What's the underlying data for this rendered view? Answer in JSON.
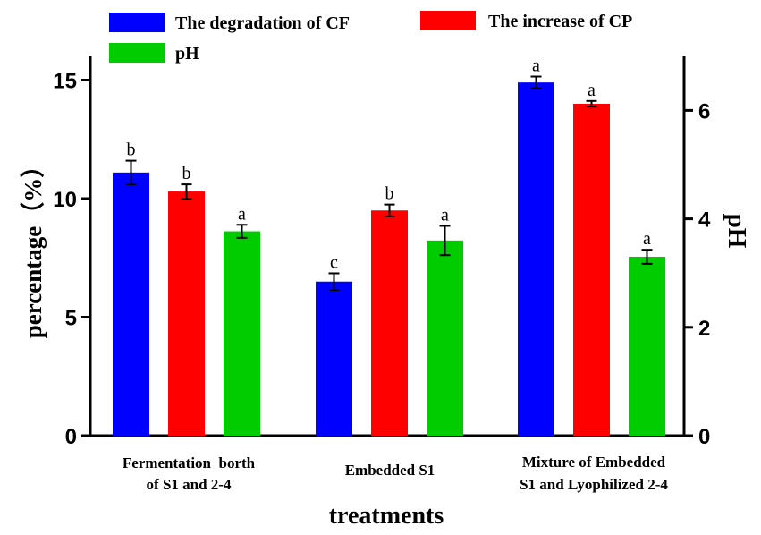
{
  "chart_data": {
    "type": "bar",
    "title": "",
    "xlabel": "treatments",
    "ylabel": "percentage（%）",
    "y2label": "pH",
    "ylim": [
      0,
      16
    ],
    "y2lim": [
      0,
      7
    ],
    "yticks": [
      0,
      5,
      10,
      15
    ],
    "y2ticks": [
      0,
      2,
      4,
      6
    ],
    "categories": [
      [
        "Fermentation  borth",
        "of S1 and 2-4"
      ],
      [
        "Embedded S1"
      ],
      [
        "Mixture of Embedded",
        "S1 and Lyophilized 2-4"
      ]
    ],
    "legend_position": "top",
    "series": [
      {
        "name": "The degradation of CF",
        "axis": "left",
        "color": "#0000ff",
        "values": [
          11.1,
          6.5,
          14.9
        ],
        "errors": [
          0.5,
          0.35,
          0.25
        ],
        "letters": [
          "b",
          "c",
          "a"
        ]
      },
      {
        "name": "The increase of CP",
        "axis": "left",
        "color": "#ff0000",
        "values": [
          10.3,
          9.5,
          14.0
        ],
        "errors": [
          0.3,
          0.25,
          0.12
        ],
        "letters": [
          "b",
          "b",
          "a"
        ]
      },
      {
        "name": "pH",
        "axis": "right",
        "color": "#00cc00",
        "values": [
          3.77,
          3.6,
          3.3
        ],
        "errors": [
          0.12,
          0.27,
          0.13
        ],
        "letters": [
          "a",
          "a",
          "a"
        ]
      }
    ]
  }
}
